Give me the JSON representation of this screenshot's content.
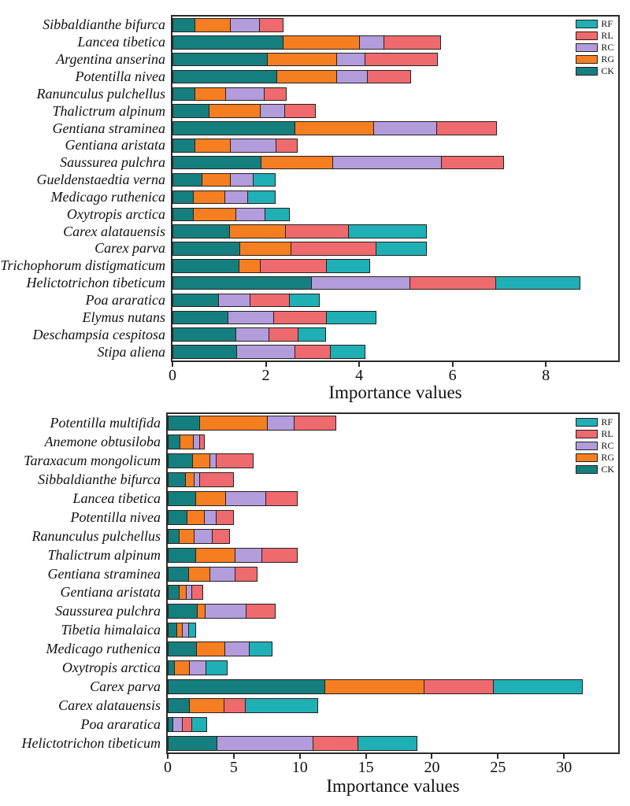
{
  "chart_data": [
    {
      "type": "bar",
      "orientation": "horizontal-stacked",
      "xlabel": "Importance values",
      "ylabel": "",
      "xlim": [
        0,
        9.55
      ],
      "x_ticks": [
        0,
        2,
        4,
        6,
        8
      ],
      "grid": false,
      "legend_position": "top-right",
      "legend_order": [
        "RF",
        "RL",
        "RC",
        "RG",
        "CK"
      ],
      "stack_order": [
        "CK",
        "RG",
        "RC",
        "RL",
        "RF"
      ],
      "colors": {
        "RF": "#1fb0b6",
        "RL": "#ee6a6e",
        "RC": "#b39cdb",
        "RG": "#f57e20",
        "CK": "#157f7f"
      },
      "edge_color": "#27201f",
      "categories": [
        "Sibbaldianthe bifurca",
        "Lancea tibetica",
        "Argentina anserina",
        "Potentilla nivea",
        "Ranunculus pulchellus",
        "Thalictrum alpinum",
        "Gentiana straminea",
        "Gentiana aristata",
        "Saussurea pulchra",
        "Gueldenstaedtia verna",
        "Medicago ruthenica",
        "Oxytropis arctica",
        "Carex alatauensis",
        "Carex parva",
        "Trichophorum distigmaticum",
        "Helictotrichon tibeticum",
        "Poa araratica",
        "Elymus nutans",
        "Deschampsia cespitosa",
        "Stipa aliena"
      ],
      "series": [
        {
          "name": "CK",
          "values": [
            0.49,
            2.38,
            2.05,
            2.24,
            0.49,
            0.79,
            2.63,
            0.49,
            1.9,
            0.64,
            0.46,
            0.46,
            1.23,
            1.45,
            1.44,
            2.98,
            1.0,
            1.2,
            1.36,
            1.39
          ]
        },
        {
          "name": "RG",
          "values": [
            0.78,
            1.65,
            1.5,
            1.31,
            0.68,
            1.11,
            1.7,
            0.78,
            1.56,
            0.62,
            0.68,
            0.93,
            1.21,
            1.11,
            0.46,
            0,
            0,
            0,
            0,
            0
          ]
        },
        {
          "name": "RC",
          "values": [
            0.63,
            0.54,
            0.61,
            0.67,
            0.83,
            0.54,
            1.38,
            0.99,
            2.34,
            0.51,
            0.51,
            0.63,
            0,
            0,
            0,
            2.13,
            0.69,
            0.99,
            0.74,
            1.26
          ]
        },
        {
          "name": "RL",
          "values": [
            0.53,
            1.23,
            1.57,
            0.95,
            0.5,
            0.69,
            1.29,
            0.47,
            1.35,
            0,
            0,
            0,
            1.38,
            1.84,
            1.44,
            1.86,
            0.85,
            1.15,
            0.64,
            0.78
          ]
        },
        {
          "name": "RF",
          "values": [
            0,
            0,
            0,
            0,
            0,
            0,
            0,
            0,
            0,
            0.49,
            0.61,
            0.54,
            1.68,
            1.1,
            0.94,
            1.82,
            0.67,
            1.08,
            0.6,
            0.75
          ]
        }
      ]
    },
    {
      "type": "bar",
      "orientation": "horizontal-stacked",
      "xlabel": "Importance values",
      "ylabel": "",
      "xlim": [
        0,
        34.1
      ],
      "x_ticks": [
        0,
        5,
        10,
        15,
        20,
        25,
        30
      ],
      "grid": false,
      "legend_position": "top-right",
      "legend_order": [
        "RF",
        "RL",
        "RC",
        "RG",
        "CK"
      ],
      "stack_order": [
        "CK",
        "RG",
        "RC",
        "RL",
        "RF"
      ],
      "colors": {
        "RF": "#1fb0b6",
        "RL": "#ee6a6e",
        "RC": "#b39cdb",
        "RG": "#f57e20",
        "CK": "#157f7f"
      },
      "edge_color": "#27201f",
      "categories": [
        "Potentilla multifida",
        "Anemone obtusiloba",
        "Taraxacum mongolicum",
        "Sibbaldianthe bifurca",
        "Lancea tibetica",
        "Potentilla nivea",
        "Ranunculus pulchellus",
        "Thalictrum alpinum",
        "Gentiana straminea",
        "Gentiana aristata",
        "Saussurea pulchra",
        "Tibetia himalaica",
        "Medicago ruthenica",
        "Oxytropis arctica",
        "Carex parva",
        "Carex alatauensis",
        "Poa araratica",
        "Helictotrichon tibeticum"
      ],
      "series": [
        {
          "name": "CK",
          "values": [
            2.47,
            0.96,
            1.91,
            1.36,
            2.15,
            1.48,
            0.87,
            2.15,
            1.62,
            0.87,
            2.27,
            0.69,
            2.21,
            0.53,
            11.9,
            1.67,
            0.43,
            3.73
          ]
        },
        {
          "name": "RG",
          "values": [
            5.16,
            1.05,
            1.39,
            0.75,
            2.33,
            1.38,
            1.24,
            3.02,
            1.63,
            0.61,
            0.63,
            0.53,
            2.23,
            1.19,
            7.6,
            2.7,
            0,
            0
          ]
        },
        {
          "name": "RC",
          "values": [
            2.11,
            0.55,
            0.53,
            0.43,
            3.11,
            0.97,
            1.38,
            2.13,
            2.02,
            0.49,
            3.16,
            0.5,
            1.85,
            1.32,
            0,
            0,
            0.79,
            7.36
          ]
        },
        {
          "name": "RL",
          "values": [
            3.21,
            0.44,
            2.82,
            2.63,
            2.41,
            1.34,
            1.38,
            2.7,
            1.73,
            0.89,
            2.27,
            0,
            0,
            0,
            5.3,
            1.64,
            0.74,
            3.46
          ]
        },
        {
          "name": "RF",
          "values": [
            0,
            0,
            0,
            0,
            0,
            0,
            0,
            0,
            0,
            0,
            0,
            0.59,
            1.83,
            1.69,
            6.8,
            5.56,
            1.18,
            4.53
          ]
        }
      ]
    }
  ]
}
